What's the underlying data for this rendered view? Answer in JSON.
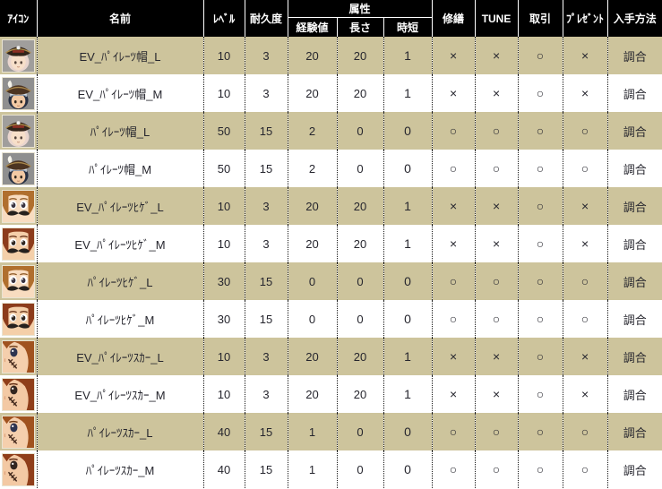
{
  "table": {
    "headers": {
      "icon": "ｱｲｺﾝ",
      "name": "名前",
      "level": "ﾚﾍﾞﾙ",
      "durability": "耐久度",
      "attributes_group": "属性",
      "exp": "経験値",
      "length": "長さ",
      "time_reduction": "時短",
      "repair": "修繕",
      "tune": "TUNE",
      "trade": "取引",
      "present": "ﾌﾟﾚｾﾞﾝﾄ",
      "acquisition": "入手方法"
    },
    "marks": {
      "yes": "○",
      "no": "×"
    },
    "rows": [
      {
        "icon": "pirate-hat-l-avatar-icon",
        "name": "EV_ﾊﾟｲﾚｰﾂ帽_L",
        "level": "10",
        "durability": "3",
        "exp": "20",
        "length": "20",
        "time_reduction": "1",
        "repair": "×",
        "tune": "×",
        "trade": "○",
        "present": "×",
        "acquisition": "調合"
      },
      {
        "icon": "pirate-hat-m-avatar-icon",
        "name": "EV_ﾊﾟｲﾚｰﾂ帽_M",
        "level": "10",
        "durability": "3",
        "exp": "20",
        "length": "20",
        "time_reduction": "1",
        "repair": "×",
        "tune": "×",
        "trade": "○",
        "present": "×",
        "acquisition": "調合"
      },
      {
        "icon": "pirate-hat-l-avatar-icon",
        "name": "ﾊﾟｲﾚｰﾂ帽_L",
        "level": "50",
        "durability": "15",
        "exp": "2",
        "length": "0",
        "time_reduction": "0",
        "repair": "○",
        "tune": "○",
        "trade": "○",
        "present": "○",
        "acquisition": "調合"
      },
      {
        "icon": "pirate-hat-m-avatar-icon",
        "name": "ﾊﾟｲﾚｰﾂ帽_M",
        "level": "50",
        "durability": "15",
        "exp": "2",
        "length": "0",
        "time_reduction": "0",
        "repair": "○",
        "tune": "○",
        "trade": "○",
        "present": "○",
        "acquisition": "調合"
      },
      {
        "icon": "pirate-mustache-l-avatar-icon",
        "name": "EV_ﾊﾟｲﾚｰﾂﾋｹﾞ_L",
        "level": "10",
        "durability": "3",
        "exp": "20",
        "length": "20",
        "time_reduction": "1",
        "repair": "×",
        "tune": "×",
        "trade": "○",
        "present": "×",
        "acquisition": "調合"
      },
      {
        "icon": "pirate-mustache-m-avatar-icon",
        "name": "EV_ﾊﾟｲﾚｰﾂﾋｹﾞ_M",
        "level": "10",
        "durability": "3",
        "exp": "20",
        "length": "20",
        "time_reduction": "1",
        "repair": "×",
        "tune": "×",
        "trade": "○",
        "present": "×",
        "acquisition": "調合"
      },
      {
        "icon": "pirate-mustache-l-avatar-icon",
        "name": "ﾊﾟｲﾚｰﾂﾋｹﾞ_L",
        "level": "30",
        "durability": "15",
        "exp": "0",
        "length": "0",
        "time_reduction": "0",
        "repair": "○",
        "tune": "○",
        "trade": "○",
        "present": "○",
        "acquisition": "調合"
      },
      {
        "icon": "pirate-mustache-m-avatar-icon",
        "name": "ﾊﾟｲﾚｰﾂﾋｹﾞ_M",
        "level": "30",
        "durability": "15",
        "exp": "0",
        "length": "0",
        "time_reduction": "0",
        "repair": "○",
        "tune": "○",
        "trade": "○",
        "present": "○",
        "acquisition": "調合"
      },
      {
        "icon": "pirate-scar-l-avatar-icon",
        "name": "EV_ﾊﾟｲﾚｰﾂｽｶｰ_L",
        "level": "10",
        "durability": "3",
        "exp": "20",
        "length": "20",
        "time_reduction": "1",
        "repair": "×",
        "tune": "×",
        "trade": "○",
        "present": "×",
        "acquisition": "調合"
      },
      {
        "icon": "pirate-scar-m-avatar-icon",
        "name": "EV_ﾊﾟｲﾚｰﾂｽｶｰ_M",
        "level": "10",
        "durability": "3",
        "exp": "20",
        "length": "20",
        "time_reduction": "1",
        "repair": "×",
        "tune": "×",
        "trade": "○",
        "present": "×",
        "acquisition": "調合"
      },
      {
        "icon": "pirate-scar-l-avatar-icon",
        "name": "ﾊﾟｲﾚｰﾂｽｶｰ_L",
        "level": "40",
        "durability": "15",
        "exp": "1",
        "length": "0",
        "time_reduction": "0",
        "repair": "○",
        "tune": "○",
        "trade": "○",
        "present": "○",
        "acquisition": "調合"
      },
      {
        "icon": "pirate-scar-m-avatar-icon",
        "name": "ﾊﾟｲﾚｰﾂｽｶｰ_M",
        "level": "40",
        "durability": "15",
        "exp": "1",
        "length": "0",
        "time_reduction": "0",
        "repair": "○",
        "tune": "○",
        "trade": "○",
        "present": "○",
        "acquisition": "調合"
      }
    ]
  },
  "colors": {
    "header_bg": "#000000",
    "header_text": "#ffffff",
    "row_odd": "#cdc49c",
    "row_even": "#ffffff",
    "cell_text": "#26262e"
  }
}
